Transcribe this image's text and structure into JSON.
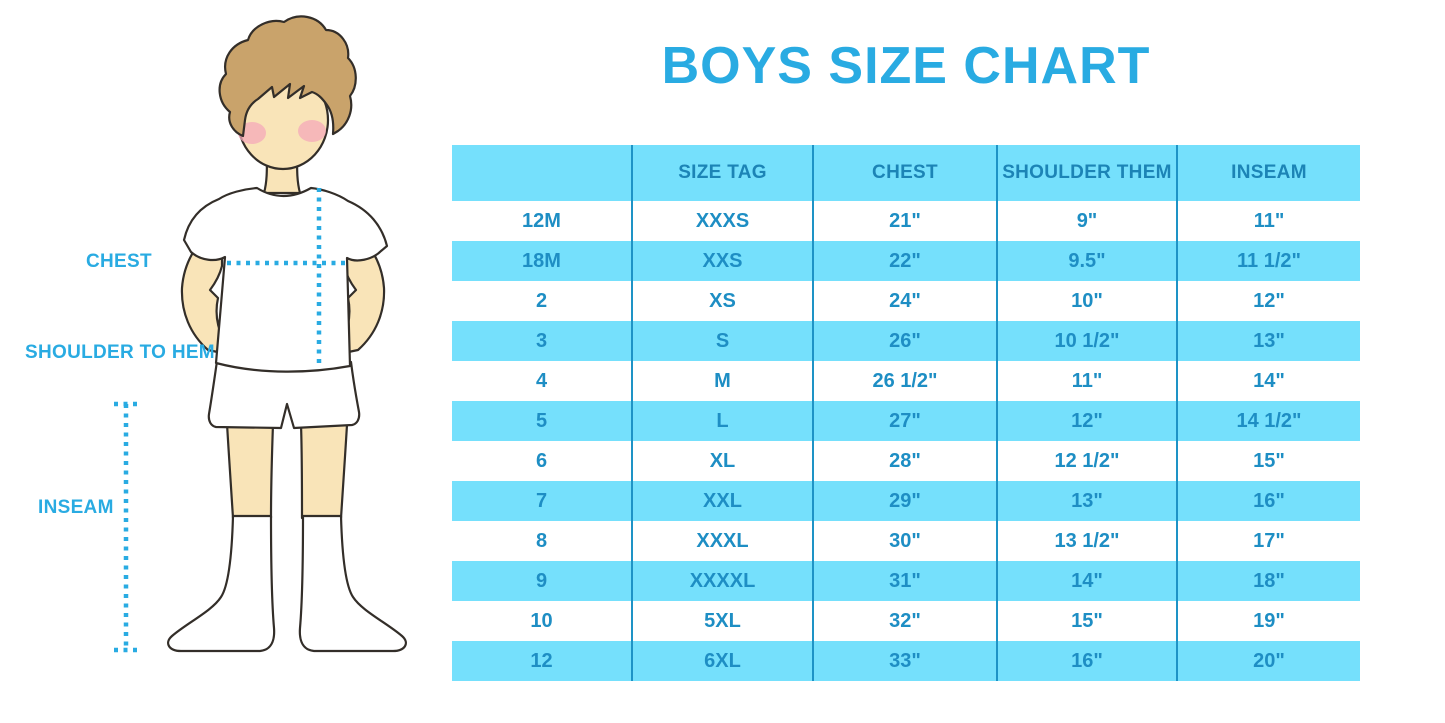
{
  "title": "BOYS SIZE CHART",
  "colors": {
    "accent": "#29ABE2",
    "band": "#75E0FC",
    "table_text": "#1E8EC4",
    "header_text": "#1C84B6",
    "divider": "#1E93C6",
    "outline": "#332E29",
    "skin": "#F9E4B8",
    "hair": "#C9A36B",
    "blush": "#F4A9B9",
    "garment": "#FFFFFF",
    "dotted_line": "#29ABE2"
  },
  "figure": {
    "labels": {
      "chest": "CHEST",
      "shoulder_to_hem": "SHOULDER TO HEM",
      "inseam": "INSEAM"
    }
  },
  "chart_data": {
    "type": "table",
    "title": "BOYS SIZE CHART",
    "columns": [
      "",
      "SIZE TAG",
      "CHEST",
      "SHOULDER THEM",
      "INSEAM"
    ],
    "rows": [
      [
        "12M",
        "XXXS",
        "21\"",
        "9\"",
        "11\""
      ],
      [
        "18M",
        "XXS",
        "22\"",
        "9.5\"",
        "11 1/2\""
      ],
      [
        "2",
        "XS",
        "24\"",
        "10\"",
        "12\""
      ],
      [
        "3",
        "S",
        "26\"",
        "10 1/2\"",
        "13\""
      ],
      [
        "4",
        "M",
        "26 1/2\"",
        "11\"",
        "14\""
      ],
      [
        "5",
        "L",
        "27\"",
        "12\"",
        "14 1/2\""
      ],
      [
        "6",
        "XL",
        "28\"",
        "12 1/2\"",
        "15\""
      ],
      [
        "7",
        "XXL",
        "29\"",
        "13\"",
        "16\""
      ],
      [
        "8",
        "XXXL",
        "30\"",
        "13 1/2\"",
        "17\""
      ],
      [
        "9",
        "XXXXL",
        "31\"",
        "14\"",
        "18\""
      ],
      [
        "10",
        "5XL",
        "32\"",
        "15\"",
        "19\""
      ],
      [
        "12",
        "6XL",
        "33\"",
        "16\"",
        "20\""
      ]
    ]
  }
}
